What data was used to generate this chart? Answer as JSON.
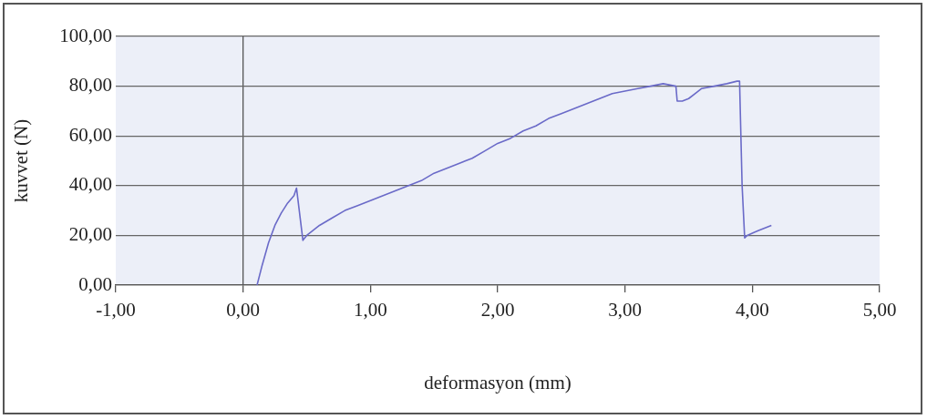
{
  "chart_data": {
    "type": "line",
    "xlabel": "deformasyon (mm)",
    "ylabel": "kuvvet (N)",
    "series": [
      {
        "color": "#6a6ac8",
        "x": [
          0.11,
          0.15,
          0.2,
          0.25,
          0.3,
          0.35,
          0.4,
          0.42,
          0.47,
          0.5,
          0.6,
          0.7,
          0.8,
          0.9,
          1.0,
          1.1,
          1.2,
          1.3,
          1.4,
          1.5,
          1.6,
          1.7,
          1.8,
          1.9,
          2.0,
          2.1,
          2.2,
          2.3,
          2.4,
          2.5,
          2.6,
          2.7,
          2.8,
          2.9,
          3.0,
          3.1,
          3.2,
          3.3,
          3.4,
          3.41,
          3.45,
          3.5,
          3.55,
          3.6,
          3.7,
          3.8,
          3.88,
          3.9,
          3.92,
          3.94,
          3.96,
          4.05,
          4.15
        ],
        "values": [
          0,
          8,
          17,
          24,
          29,
          33,
          36,
          39,
          18,
          20,
          24,
          27,
          30,
          32,
          34,
          36,
          38,
          40,
          42,
          45,
          47,
          49,
          51,
          54,
          57,
          59,
          62,
          64,
          67,
          69,
          71,
          73,
          75,
          77,
          78,
          79,
          80,
          81,
          80,
          74,
          74,
          75,
          77,
          79,
          80,
          81,
          82,
          82,
          40,
          19,
          20,
          22,
          24
        ]
      }
    ],
    "xlim": [
      -1,
      5
    ],
    "xticks": [
      {
        "value": -1,
        "label": "-1,00"
      },
      {
        "value": 0,
        "label": "0,00"
      },
      {
        "value": 1,
        "label": "1,00"
      },
      {
        "value": 2,
        "label": "2,00"
      },
      {
        "value": 3,
        "label": "3,00"
      },
      {
        "value": 4,
        "label": "4,00"
      },
      {
        "value": 5,
        "label": "5,00"
      }
    ],
    "ylim": [
      0,
      100
    ],
    "yticks": [
      {
        "value": 0,
        "label": "0,00"
      },
      {
        "value": 20,
        "label": "20,00"
      },
      {
        "value": 40,
        "label": "40,00"
      },
      {
        "value": 60,
        "label": "60,00"
      },
      {
        "value": 80,
        "label": "80,00"
      },
      {
        "value": 100,
        "label": "100,00"
      }
    ],
    "grid": "y",
    "legend": false,
    "marker": "none",
    "line_style": "solid"
  }
}
